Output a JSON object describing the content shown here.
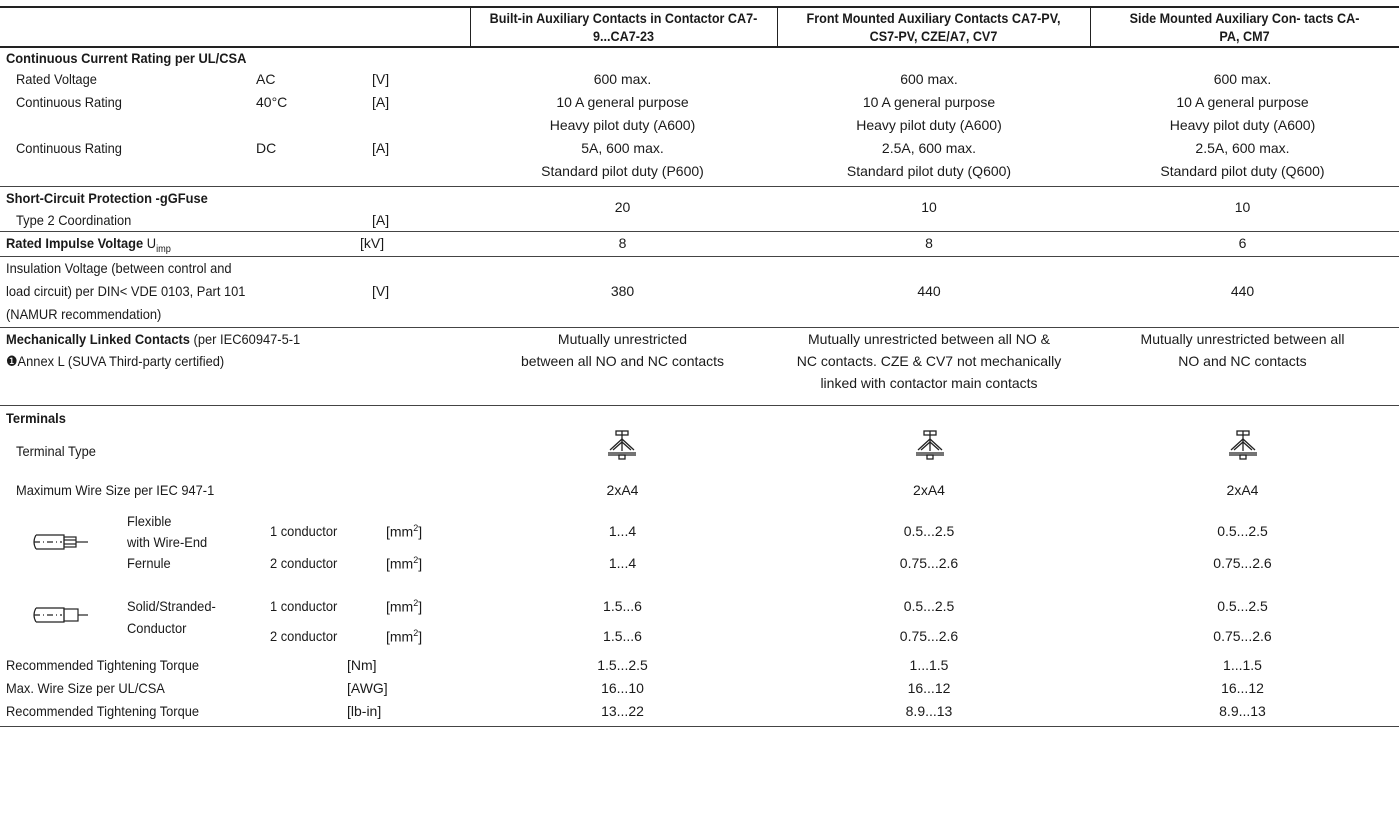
{
  "columns": [
    "Built-in Auxiliary Contacts in Contactor CA7-9...CA7-23",
    "Front Mounted Auxiliary Contacts CA7-PV, CS7-PV, CZE/A7, CV7",
    "Side Mounted Auxiliary Con- tacts CA-PA, CM7"
  ],
  "continuous": {
    "title": "Continuous Current Rating per UL/CSA",
    "rated_voltage": {
      "label": "Rated Voltage",
      "cond": "AC",
      "unit": "[V]",
      "values": [
        "600 max.",
        "600 max.",
        "600 max."
      ]
    },
    "cont_ac": {
      "label": "Continuous Rating",
      "cond": "40°C",
      "unit": "[A]",
      "line1": [
        "10 A general purpose",
        "10 A general purpose",
        "10 A general purpose"
      ],
      "line2": [
        "Heavy pilot duty (A600)",
        "Heavy pilot duty (A600)",
        "Heavy pilot duty (A600)"
      ]
    },
    "cont_dc": {
      "label": "Continuous Rating",
      "cond": "DC",
      "unit": "[A]",
      "line1": [
        "5A, 600 max.",
        "2.5A, 600 max.",
        "2.5A, 600 max."
      ],
      "line2": [
        "Standard pilot duty (P600)",
        "Standard pilot duty (Q600)",
        "Standard pilot duty (Q600)"
      ]
    }
  },
  "short_circuit": {
    "title": "Short-Circuit Protection -gGFuse",
    "label": "Type 2 Coordination",
    "unit": "[A]",
    "values": [
      "20",
      "10",
      "10"
    ]
  },
  "impulse": {
    "title": "Rated Impulse Voltage",
    "symbol": "U",
    "sub": "imp",
    "unit": "[kV]",
    "values": [
      "8",
      "8",
      "6"
    ]
  },
  "insulation": {
    "lines": [
      "Insulation Voltage (between control and",
      "load circuit) per DIN< VDE 0103, Part 101",
      "(NAMUR recommendation)"
    ],
    "unit": "[V]",
    "values": [
      "380",
      "440",
      "440"
    ]
  },
  "mech": {
    "title": "Mechanically Linked Contacts",
    "title_rest": " (per IEC60947-5-1",
    "line2": "❶Annex L (SUVA Third-party certified)",
    "col1": [
      "Mutually unrestricted",
      "between all NO and NC contacts"
    ],
    "col2": [
      "Mutually unrestricted between all NO &",
      "NC contacts. CZE & CV7 not mechanically",
      "linked with contactor main contacts"
    ],
    "col3": [
      "Mutually unrestricted between all",
      "NO and NC contacts"
    ]
  },
  "terminals": {
    "title": "Terminals",
    "type_label": "Terminal Type",
    "max_wire_label": "Maximum Wire Size per IEC 947-1",
    "max_wire": [
      "2xA4",
      "2xA4",
      "2xA4"
    ],
    "flexible": {
      "lines": [
        "Flexible",
        "with Wire-End",
        "Fernule"
      ]
    },
    "solid": {
      "lines": [
        "Solid/Stranded-",
        "Conductor"
      ]
    },
    "c1_label": "1 conductor",
    "c2_label": "2 conductor",
    "unit_mm": "[mm",
    "flex1": [
      "1...4",
      "0.5...2.5",
      "0.5...2.5"
    ],
    "flex2": [
      "1...4",
      "0.75...2.6",
      "0.75...2.6"
    ],
    "solid1": [
      "1.5...6",
      "0.5...2.5",
      "0.5...2.5"
    ],
    "solid2": [
      "1.5...6",
      "0.75...2.6",
      "0.75...2.6"
    ],
    "torque_nm": {
      "label": "Recommended Tightening Torque",
      "unit": "[Nm]",
      "values": [
        "1.5...2.5",
        "1...1.5",
        "1...1.5"
      ]
    },
    "awg": {
      "label": "Max. Wire Size per UL/CSA",
      "unit": "[AWG]",
      "values": [
        "16...10",
        "16...12",
        "16...12"
      ]
    },
    "torque_lb": {
      "label": "Recommended Tightening Torque",
      "unit": "[lb-in]",
      "values": [
        "13...22",
        "8.9...13",
        "8.9...13"
      ]
    }
  }
}
